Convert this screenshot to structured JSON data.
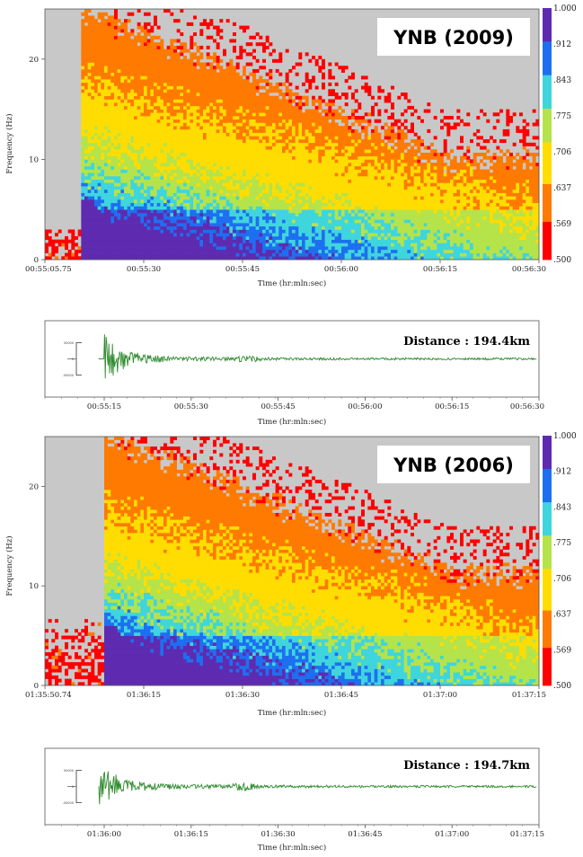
{
  "chart_data": [
    {
      "type": "heatmap",
      "panel": "spectrogram",
      "title": "YNB (2009)",
      "xlabel": "Time (hr:mln:sec)",
      "ylabel": "Frequency (Hz)",
      "x_ticks": [
        "00:55:05.75",
        "00:55:30",
        "00:55:45",
        "00:56:00",
        "00:56:15",
        "00:56:30"
      ],
      "y_ticks": [
        "0",
        "10",
        "20"
      ],
      "ylim": [
        0,
        25
      ],
      "colorbar": {
        "min": 0.5,
        "max": 1.0,
        "tick_labels": [
          "1.000",
          ".912",
          ".843",
          ".775",
          ".706",
          ".637",
          ".569",
          ".500"
        ]
      },
      "onset_fraction": 0.07,
      "decay_top_hz": 10
    },
    {
      "type": "line",
      "panel": "seismogram",
      "annotation": "Distance : 194.4km",
      "xlabel": "Time (hr:mln:sec)",
      "x_ticks": [
        "00:55:15",
        "00:55:30",
        "00:55:45",
        "00:56:00",
        "00:56:15",
        "00:56:30"
      ],
      "amplitude_labels": [
        "50000",
        "0",
        "-50000"
      ],
      "grid": false
    },
    {
      "type": "heatmap",
      "panel": "spectrogram",
      "title": "YNB (2006)",
      "xlabel": "Time (hr:mln:sec)",
      "ylabel": "Frequency (Hz)",
      "x_ticks": [
        "01:35:50.74",
        "01:36:15",
        "01:36:30",
        "01:36:45",
        "01:37:00",
        "01:37:15"
      ],
      "y_ticks": [
        "0",
        "10",
        "20"
      ],
      "ylim": [
        0,
        25
      ],
      "colorbar": {
        "min": 0.5,
        "max": 1.0,
        "tick_labels": [
          "1.000",
          ".912",
          ".843",
          ".775",
          ".706",
          ".637",
          ".569",
          ".500"
        ]
      },
      "onset_fraction": 0.12,
      "decay_top_hz": 11
    },
    {
      "type": "line",
      "panel": "seismogram",
      "annotation": "Distance : 194.7km",
      "xlabel": "Time (hr:mln:sec)",
      "x_ticks": [
        "01:36:00",
        "01:36:15",
        "01:36:30",
        "01:36:45",
        "01:37:00",
        "01:37:15"
      ],
      "amplitude_labels": [
        "50000",
        "0",
        "-50000"
      ],
      "grid": false
    }
  ],
  "colors": {
    "background_gray": "#c8c8c8",
    "waveform": "#2e8b2e",
    "colormap": [
      "#ff0000",
      "#ff7a00",
      "#ffdd00",
      "#b5e34a",
      "#3fd5dd",
      "#1e6ff0",
      "#5e2bb0",
      "#ff1493"
    ]
  }
}
